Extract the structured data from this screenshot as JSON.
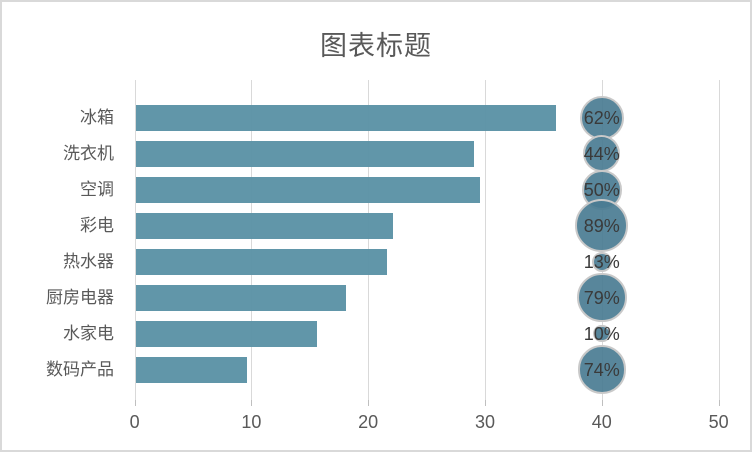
{
  "title": "图表标题",
  "chart_data": {
    "type": "bar",
    "subtype": "horizontal-bars-with-bubble-overlay",
    "title": "图表标题",
    "categories": [
      "冰箱",
      "洗衣机",
      "空调",
      "彩电",
      "热水器",
      "厨房电器",
      "水家电",
      "数码产品"
    ],
    "bar_values": [
      36,
      29,
      29.5,
      22,
      21.5,
      18,
      15.5,
      9.5
    ],
    "bubble_pct_values": [
      62,
      44,
      50,
      89,
      13,
      79,
      10,
      74
    ],
    "bubble_labels": [
      "62%",
      "44%",
      "50%",
      "89%",
      "13%",
      "79%",
      "10%",
      "74%"
    ],
    "x_ticks": [
      "0",
      "10",
      "20",
      "30",
      "40",
      "50"
    ],
    "x_tick_values": [
      0,
      10,
      20,
      30,
      40,
      50
    ],
    "xlim": [
      0,
      50
    ],
    "bubble_axis_position": 40,
    "legend": "none",
    "gridlines": "vertical"
  },
  "colors": {
    "bar": "#5b92a6",
    "bubble_fill": "#4a7c93",
    "bubble_border": "#c9c9c9",
    "gridline": "#d9d9d9",
    "tick_mark": "#bfbfbf",
    "axis_text": "#595959",
    "title_text": "#595959",
    "bubble_label_text": "#3a3a3a",
    "frame_border": "#d9d9d9"
  }
}
